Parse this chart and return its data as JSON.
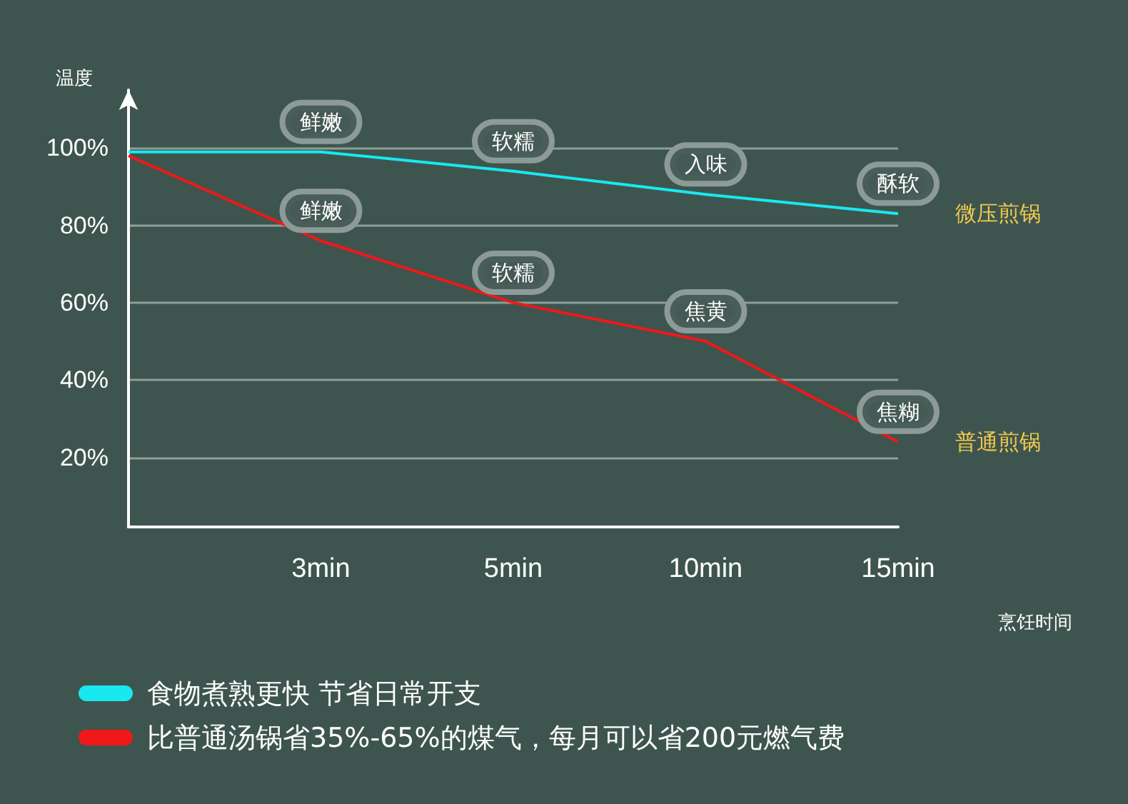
{
  "chart_data": {
    "type": "line",
    "xlabel": "烹饪时间",
    "ylabel": "温度",
    "categories": [
      null,
      "3min",
      "5min",
      "10min",
      "15min"
    ],
    "series": [
      {
        "name": "微压煎锅",
        "color": "#19e8f0",
        "values": [
          99,
          99,
          94,
          88,
          83
        ]
      },
      {
        "name": "普通煎锅",
        "color": "#f01818",
        "values": [
          98,
          76,
          60,
          50,
          24
        ]
      }
    ],
    "ylim": [
      2,
      115
    ],
    "yticks": [
      {
        "value": 20,
        "label": "20%"
      },
      {
        "value": 40,
        "label": "40%"
      },
      {
        "value": 60,
        "label": "60%"
      },
      {
        "value": 80,
        "label": "80%"
      },
      {
        "value": 100,
        "label": "100%"
      }
    ],
    "grid": "y",
    "marker": "none",
    "line_style": "solid",
    "legend": false,
    "annotations": [
      {
        "text": "鲜嫩",
        "x": "3min",
        "y": 99
      },
      {
        "text": "软糯",
        "x": "5min",
        "y": 94
      },
      {
        "text": "入味",
        "x": "10min",
        "y": 88
      },
      {
        "text": "酥软",
        "x": "15min",
        "y": 83
      },
      {
        "text": "鲜嫩",
        "x": "3min",
        "y": 76
      },
      {
        "text": "软糯",
        "x": "5min",
        "y": 60
      },
      {
        "text": "焦黄",
        "x": "10min",
        "y": 50
      },
      {
        "text": "焦糊",
        "x": "15min",
        "y": 24
      },
      "食物煮熟更快 节省日常开支",
      "比普通汤锅省35%-65%的煤气，每月可以省200元燃气费"
    ]
  }
}
